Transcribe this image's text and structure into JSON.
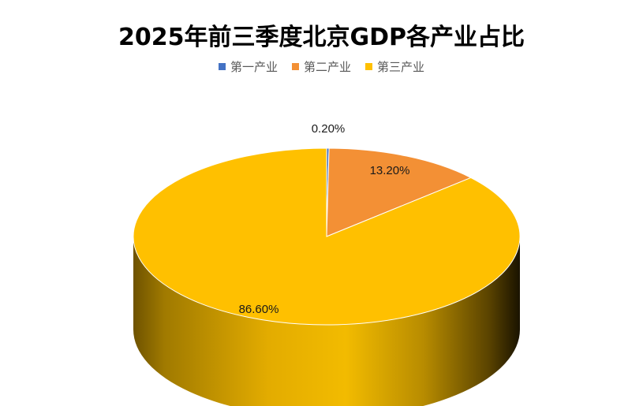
{
  "chart_data": {
    "type": "pie",
    "title": "2025年前三季度北京GDP各产业占比",
    "categories": [
      "第一产业",
      "第二产业",
      "第三产业"
    ],
    "values": [
      0.2,
      13.2,
      86.6
    ],
    "labels": [
      "0.20%",
      "13.20%",
      "86.60%"
    ],
    "colors": [
      "#4472C4",
      "#F39035",
      "#FFC000"
    ],
    "legend_position": "top",
    "style": "3d"
  }
}
